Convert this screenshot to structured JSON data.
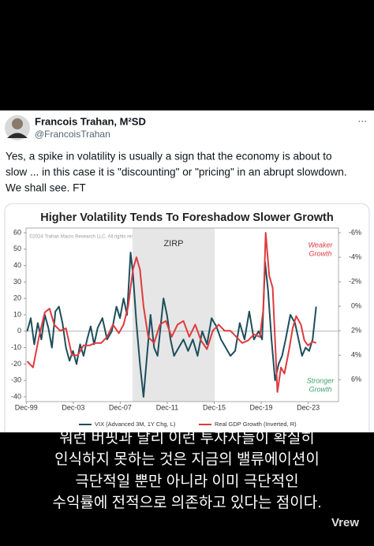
{
  "tweet": {
    "author": "Francois Trahan, M²SD",
    "handle": "@FrancoisTrahan",
    "more": "...",
    "text": [
      "Yes, a spike in volatility is usually a sign that the economy is about to",
      "slow ... in this case it is \"discounting\" or \"pricing\" in an abrupt slowdown.",
      "We shall see. FT"
    ]
  },
  "chart_data": {
    "type": "line",
    "title": "Higher Volatility Tends To Foreshadow Slower Growth",
    "copyright": "©2024 Trahan Macro Research LLC. All rights reserved.",
    "shaded_range": {
      "label": "ZIRP",
      "x": [
        2008.96,
        2015.96
      ]
    },
    "annotations": {
      "weaker": [
        "Weaker",
        "Growth"
      ],
      "stronger": [
        "Stronger",
        "Growth"
      ]
    },
    "xlim": [
      1999.9,
      2026.5
    ],
    "xticks": [
      {
        "value": 1999.92,
        "label": "Dec-99"
      },
      {
        "value": 2003.92,
        "label": "Dec-03"
      },
      {
        "value": 2007.92,
        "label": "Dec-07"
      },
      {
        "value": 2011.92,
        "label": "Dec-11"
      },
      {
        "value": 2015.92,
        "label": "Dec-15"
      },
      {
        "value": 2019.92,
        "label": "Dec-19"
      },
      {
        "value": 2023.92,
        "label": "Dec-23"
      }
    ],
    "ylim": [
      -40,
      60
    ],
    "yticks": [
      60,
      50,
      40,
      30,
      20,
      10,
      0,
      -10,
      -20,
      -30,
      -40
    ],
    "y2lim": [
      7.4,
      -6
    ],
    "y2ticks": [
      {
        "value": -6,
        "label": "-6%"
      },
      {
        "value": -4,
        "label": "-4%"
      },
      {
        "value": -2,
        "label": "-2%"
      },
      {
        "value": 0,
        "label": "0%"
      },
      {
        "value": 2,
        "label": "2%"
      },
      {
        "value": 4,
        "label": "4%"
      },
      {
        "value": 6,
        "label": "6%"
      }
    ],
    "series": [
      {
        "name": "VIX (Advanced 3M, 1Y Chg, L)",
        "color": "#1d4e5c",
        "x": [
          2000.0,
          2000.3,
          2000.6,
          2000.9,
          2001.2,
          2001.5,
          2001.8,
          2002.1,
          2002.4,
          2002.7,
          2003.0,
          2003.3,
          2003.6,
          2003.9,
          2004.2,
          2004.5,
          2004.8,
          2005.1,
          2005.4,
          2005.7,
          2006.0,
          2006.4,
          2006.8,
          2007.2,
          2007.6,
          2007.9,
          2008.2,
          2008.5,
          2008.8,
          2009.0,
          2009.3,
          2009.6,
          2009.9,
          2010.2,
          2010.5,
          2010.8,
          2011.1,
          2011.6,
          2011.9,
          2012.2,
          2012.5,
          2012.9,
          2013.3,
          2013.7,
          2014.1,
          2014.5,
          2014.9,
          2015.3,
          2015.7,
          2016.1,
          2016.5,
          2016.9,
          2017.3,
          2017.7,
          2018.1,
          2018.5,
          2018.9,
          2019.3,
          2019.7,
          2020.0,
          2020.25,
          2020.5,
          2020.8,
          2021.1,
          2021.4,
          2021.7,
          2022.0,
          2022.4,
          2022.8,
          2023.1,
          2023.4,
          2023.7,
          2024.0,
          2024.3,
          2024.6
        ],
        "values": [
          0,
          8,
          -8,
          5,
          -5,
          10,
          2,
          -10,
          12,
          15,
          5,
          -10,
          -18,
          -12,
          -20,
          -8,
          -15,
          -5,
          3,
          -8,
          2,
          8,
          -5,
          0,
          15,
          8,
          20,
          10,
          48,
          35,
          5,
          -20,
          -40,
          -15,
          10,
          -10,
          -15,
          20,
          10,
          -5,
          -15,
          -10,
          -5,
          -12,
          -5,
          -15,
          0,
          -8,
          8,
          3,
          -5,
          -10,
          -15,
          -12,
          5,
          -5,
          12,
          -5,
          0,
          -5,
          42,
          25,
          -5,
          -30,
          -20,
          -15,
          -5,
          10,
          5,
          -5,
          -15,
          -10,
          -12,
          -5,
          15
        ]
      },
      {
        "name": "Real GDP Growth (Inverted, R)",
        "color": "#e03a3e",
        "axis": "y2",
        "x": [
          2000.0,
          2000.5,
          2001.0,
          2001.5,
          2001.9,
          2002.3,
          2002.8,
          2003.3,
          2003.8,
          2004.3,
          2004.8,
          2005.3,
          2005.8,
          2006.3,
          2006.8,
          2007.3,
          2007.8,
          2008.2,
          2008.6,
          2009.0,
          2009.3,
          2009.6,
          2009.9,
          2010.3,
          2010.8,
          2011.3,
          2011.8,
          2012.3,
          2012.8,
          2013.3,
          2013.8,
          2014.3,
          2014.8,
          2015.3,
          2015.8,
          2016.3,
          2016.8,
          2017.3,
          2017.8,
          2018.3,
          2018.8,
          2019.3,
          2019.8,
          2020.1,
          2020.3,
          2020.6,
          2020.9,
          2021.3,
          2021.6,
          2021.9,
          2022.3,
          2022.6,
          2022.9,
          2023.3,
          2023.6,
          2023.9,
          2024.3,
          2024.6
        ],
        "values": [
          4.5,
          5,
          2.5,
          0.5,
          0.2,
          1.5,
          2,
          1.8,
          4,
          4,
          3.2,
          3.2,
          3,
          3,
          2.5,
          1.5,
          2.2,
          1.5,
          0,
          -3,
          -4,
          -3,
          0,
          2.5,
          3,
          1.5,
          1.2,
          2.5,
          1.5,
          1.2,
          2.5,
          1.5,
          2.8,
          3.5,
          2,
          1.5,
          2,
          2,
          2.5,
          3,
          2.8,
          2.3,
          2.5,
          0.3,
          -6,
          -2.5,
          -1.5,
          7,
          5,
          5.5,
          3.5,
          1.8,
          0.8,
          1.5,
          2.8,
          3.2,
          2.9,
          3
        ]
      }
    ]
  },
  "subtitle": [
    "워런 버핏과 달리 이런 투자자들이 확실히",
    "인식하지 못하는 것은 지금의 밸류에이션이",
    "극단적일 뿐만 아니라 이미 극단적인",
    "수익률에 전적으로 의존하고 있다는 점이다."
  ],
  "watermark": "Vrew"
}
